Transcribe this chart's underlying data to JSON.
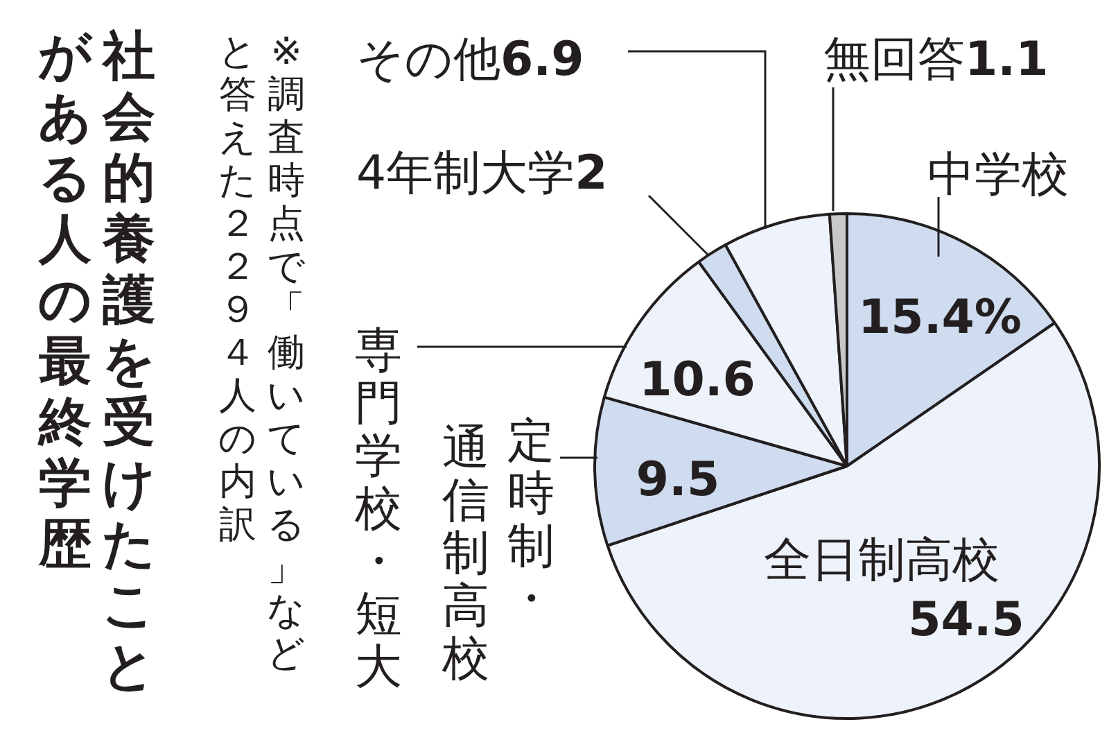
{
  "chart_data": {
    "type": "pie",
    "title": "社会的養護を受けたことがある人の最終学歴",
    "annotations": [
      "※調査時点で「働いている」などと答えた２２９４人の内訳"
    ],
    "categories": [
      "中学校",
      "全日制高校",
      "定時制・通信制高校",
      "専門学校・短大",
      "4年制大学",
      "その他",
      "無回答"
    ],
    "values": [
      15.4,
      54.5,
      9.5,
      10.6,
      2,
      6.9,
      1.1
    ],
    "colors": [
      "#cfdcef",
      "#eef2fa",
      "#cfdcef",
      "#eef2fa",
      "#cfdcef",
      "#eef2fa",
      "#c8c8c8"
    ],
    "value_labels": [
      "15.4%",
      "54.5",
      "9.5",
      "10.6",
      "2",
      "6.9",
      "1.1"
    ],
    "legend": false
  }
}
